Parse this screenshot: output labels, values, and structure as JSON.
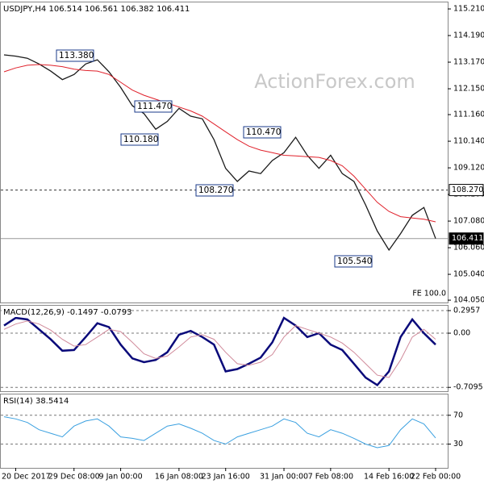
{
  "chart_data": [
    {
      "type": "line",
      "title": "USDJPY,H4  106.514 106.561 106.382 106.411",
      "watermark": "ActionForex.com",
      "ylim": [
        103.96,
        115.49
      ],
      "yticks": [
        {
          "value": 115.21,
          "label": "115.210"
        },
        {
          "value": 114.19,
          "label": "114.190"
        },
        {
          "value": 113.17,
          "label": "113.170"
        },
        {
          "value": 112.15,
          "label": "112.150"
        },
        {
          "value": 111.16,
          "label": "111.160"
        },
        {
          "value": 110.14,
          "label": "110.140"
        },
        {
          "value": 109.12,
          "label": "109.120"
        },
        {
          "value": 108.1,
          "label": "108.100"
        },
        {
          "value": 107.08,
          "label": "107.080"
        },
        {
          "value": 106.06,
          "label": "106.060"
        },
        {
          "value": 105.04,
          "label": "105.040"
        },
        {
          "value": 104.05,
          "label": "104.050"
        }
      ],
      "series": [
        {
          "name": "USDJPY",
          "color": "#1a1a1a",
          "values": [
            113.45,
            113.4,
            113.32,
            113.1,
            112.83,
            112.5,
            112.7,
            113.1,
            113.26,
            112.8,
            112.2,
            111.5,
            111.2,
            110.6,
            110.9,
            111.4,
            111.1,
            111.0,
            110.2,
            109.1,
            108.6,
            109.0,
            108.9,
            109.4,
            109.7,
            110.29,
            109.6,
            109.1,
            109.6,
            108.9,
            108.6,
            107.7,
            106.7,
            105.97,
            106.6,
            107.3,
            107.6,
            106.41
          ]
        },
        {
          "name": "MA",
          "color": "#e0212b",
          "values": [
            112.8,
            112.95,
            113.05,
            113.08,
            113.05,
            113.0,
            112.9,
            112.85,
            112.83,
            112.7,
            112.4,
            112.1,
            111.9,
            111.75,
            111.6,
            111.45,
            111.3,
            111.1,
            110.8,
            110.5,
            110.2,
            109.95,
            109.8,
            109.7,
            109.6,
            109.58,
            109.55,
            109.52,
            109.4,
            109.2,
            108.8,
            108.3,
            107.8,
            107.45,
            107.25,
            107.2,
            107.15,
            107.05
          ]
        }
      ],
      "levels": [
        {
          "value": 108.27,
          "label": "108.270"
        },
        106.411
      ],
      "annotations": [
        "113.380",
        "111.470",
        "110.180",
        "110.470",
        "108.270",
        "105.540",
        "FE 100.0"
      ]
    },
    {
      "type": "line",
      "title": "MACD(12,26,9) -0.1497 -0.0793",
      "ylim": [
        -0.76,
        0.37
      ],
      "yticks": [
        0.2957,
        {
          "value": 0,
          "label": "0.00"
        },
        -0.7095
      ],
      "grid": true,
      "series": [
        {
          "name": "MACD",
          "color": "#0a0a7a",
          "values": [
            0.1,
            0.2,
            0.18,
            0.05,
            -0.08,
            -0.23,
            -0.22,
            -0.05,
            0.13,
            0.08,
            -0.15,
            -0.33,
            -0.38,
            -0.35,
            -0.25,
            -0.02,
            0.03,
            -0.05,
            -0.15,
            -0.5,
            -0.47,
            -0.4,
            -0.32,
            -0.12,
            0.2,
            0.1,
            -0.05,
            0.0,
            -0.15,
            -0.22,
            -0.4,
            -0.58,
            -0.68,
            -0.5,
            -0.05,
            0.18,
            0.0,
            -0.15
          ]
        },
        {
          "name": "Signal",
          "color": "#d08a9a",
          "values": [
            0.05,
            0.12,
            0.16,
            0.12,
            0.04,
            -0.08,
            -0.17,
            -0.15,
            -0.05,
            0.05,
            0.02,
            -0.12,
            -0.27,
            -0.33,
            -0.3,
            -0.18,
            -0.05,
            -0.02,
            -0.08,
            -0.25,
            -0.4,
            -0.42,
            -0.38,
            -0.28,
            -0.05,
            0.1,
            0.05,
            0.0,
            -0.05,
            -0.13,
            -0.25,
            -0.4,
            -0.55,
            -0.58,
            -0.35,
            -0.05,
            0.05,
            -0.08
          ]
        }
      ]
    },
    {
      "type": "line",
      "title": "RSI(14) 38.5414",
      "ylim": [
        -3,
        100
      ],
      "yticks": [
        70,
        30
      ],
      "grid": true,
      "categories": [
        null,
        "20 Dec 2017",
        null,
        null,
        null,
        null,
        "29 Dec 08:00",
        null,
        null,
        null,
        "9 Jan 00:00",
        null,
        null,
        null,
        null,
        "16 Jan 08:00",
        null,
        null,
        null,
        "23 Jan 16:00",
        null,
        null,
        null,
        null,
        "31 Jan 00:00",
        null,
        null,
        null,
        "7 Feb 08:00",
        null,
        null,
        null,
        null,
        "14 Feb 16:00",
        null,
        null,
        null,
        "22 Feb 00:00"
      ],
      "series": [
        {
          "name": "RSI",
          "color": "#3aa0e0",
          "values": [
            68,
            65,
            60,
            50,
            45,
            40,
            55,
            62,
            65,
            55,
            40,
            38,
            35,
            45,
            55,
            58,
            52,
            45,
            35,
            30,
            40,
            45,
            50,
            55,
            65,
            60,
            45,
            40,
            50,
            45,
            38,
            30,
            25,
            28,
            50,
            65,
            58,
            38.54
          ]
        }
      ]
    }
  ]
}
